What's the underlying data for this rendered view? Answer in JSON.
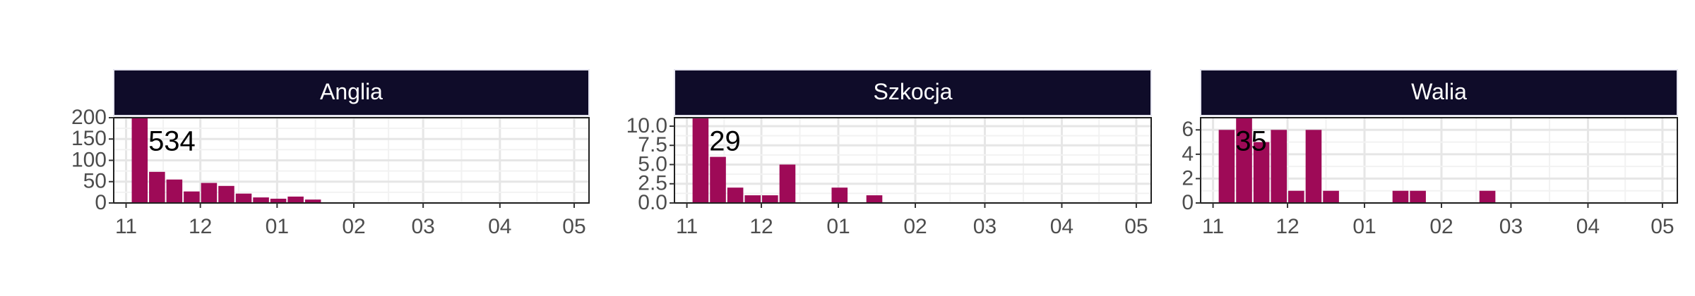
{
  "chart_data": [
    {
      "type": "histogram",
      "title": "Anglia",
      "annotation": 534,
      "color": "#9e0a57",
      "grid": true,
      "bins": [
        2,
        9,
        16,
        23,
        30,
        37,
        44,
        51,
        58,
        65,
        72,
        79
      ],
      "values": [
        224,
        73,
        55,
        27,
        47,
        40,
        22,
        13,
        10,
        15,
        8
      ],
      "xlim": [
        -5,
        187
      ],
      "xticks": [
        {
          "value": 0,
          "label": "11"
        },
        {
          "value": 30,
          "label": "12"
        },
        {
          "value": 61,
          "label": "01"
        },
        {
          "value": 92,
          "label": "02"
        },
        {
          "value": 120,
          "label": "03"
        },
        {
          "value": 151,
          "label": "04"
        },
        {
          "value": 181,
          "label": "05"
        }
      ],
      "ylim": [
        0,
        200
      ],
      "yticks": [
        0,
        50,
        100,
        150,
        200
      ]
    },
    {
      "type": "histogram",
      "title": "Szkocja",
      "annotation": 29,
      "color": "#9e0a57",
      "grid": true,
      "bins": [
        2,
        9,
        16,
        23,
        30,
        37,
        44,
        51,
        58,
        65,
        72,
        79
      ],
      "values": [
        11,
        6,
        2,
        1,
        1,
        5,
        0,
        0,
        2,
        0,
        1
      ],
      "xlim": [
        -5,
        187
      ],
      "xticks": [
        {
          "value": 0,
          "label": "11"
        },
        {
          "value": 30,
          "label": "12"
        },
        {
          "value": 61,
          "label": "01"
        },
        {
          "value": 92,
          "label": "02"
        },
        {
          "value": 120,
          "label": "03"
        },
        {
          "value": 151,
          "label": "04"
        },
        {
          "value": 181,
          "label": "05"
        }
      ],
      "ylim": [
        0,
        11.1
      ],
      "yticks": [
        {
          "value": 0,
          "label": "0.0"
        },
        {
          "value": 2.5,
          "label": "2.5"
        },
        {
          "value": 5,
          "label": "5.0"
        },
        {
          "value": 7.5,
          "label": "7.5"
        },
        {
          "value": 10,
          "label": "10.0"
        }
      ]
    },
    {
      "type": "histogram",
      "title": "Walia",
      "annotation": 35,
      "color": "#9e0a57",
      "grid": true,
      "bins": [
        2,
        9,
        16,
        23,
        30,
        37,
        44,
        51,
        58,
        65,
        72,
        79,
        86,
        93,
        100,
        107,
        114
      ],
      "values": [
        6,
        7,
        5,
        6,
        1,
        6,
        1,
        0,
        0,
        0,
        1,
        1,
        0,
        0,
        0,
        1
      ],
      "xlim": [
        -5,
        187
      ],
      "xticks": [
        {
          "value": 0,
          "label": "11"
        },
        {
          "value": 30,
          "label": "12"
        },
        {
          "value": 61,
          "label": "01"
        },
        {
          "value": 92,
          "label": "02"
        },
        {
          "value": 120,
          "label": "03"
        },
        {
          "value": 151,
          "label": "04"
        },
        {
          "value": 181,
          "label": "05"
        }
      ],
      "ylim": [
        0,
        7
      ],
      "yticks": [
        0,
        2,
        4,
        6
      ]
    }
  ]
}
